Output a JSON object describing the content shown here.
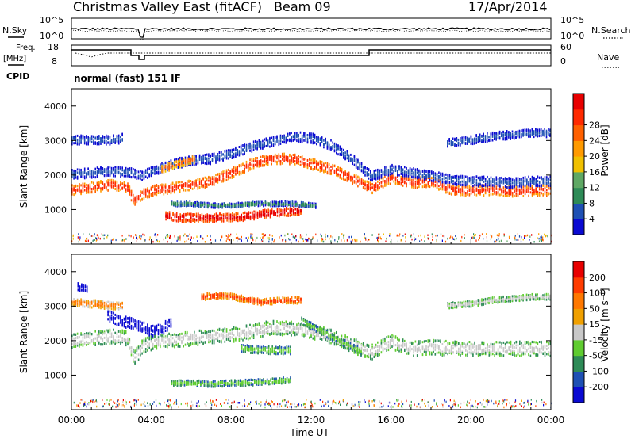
{
  "header": {
    "title": "Christmas Valley East (fitACF)",
    "beam": "Beam 09",
    "date": "17/Apr/2014"
  },
  "noise_panel": {
    "left_label": "N.Sky",
    "right_label": "N.Search",
    "tick_top": "10^5",
    "tick_bottom": "10^0"
  },
  "freq_panel": {
    "left_label_1": "Freq.",
    "left_label_2": "[MHz]",
    "left_tick_top": "18",
    "left_tick_bottom": "8",
    "right_tick_top": "60",
    "right_tick_bottom": "0",
    "right_label": "Nave"
  },
  "cpid": {
    "label": "CPID",
    "text": "normal (fast) 151 IF"
  },
  "chart_data": [
    {
      "type": "heatmap",
      "name": "power",
      "ylabel": "Slant Range [km]",
      "ylim": [
        0,
        4500
      ],
      "yticks": [
        "1000",
        "2000",
        "3000",
        "4000"
      ],
      "colorbar": {
        "label": "Power [dB]",
        "ticks": [
          "4",
          "8",
          "12",
          "16",
          "20",
          "24",
          "28"
        ],
        "colors": [
          "#0a0ad2",
          "#1e50b4",
          "#2e8b57",
          "#5fa864",
          "#f0c000",
          "#ff9a00",
          "#ff6000",
          "#ff2a00",
          "#e80000"
        ]
      },
      "bands": [
        {
          "times": [
            0,
            1,
            2,
            2.8,
            3.1,
            3.6,
            4.2,
            5,
            6,
            7,
            8,
            9,
            10,
            11,
            12,
            13,
            14,
            15,
            16,
            17,
            18,
            19,
            20,
            21,
            22,
            23,
            24
          ],
          "ranges": [
            1600,
            1680,
            1750,
            1650,
            1300,
            1500,
            1600,
            1650,
            1760,
            1850,
            2100,
            2350,
            2500,
            2500,
            2350,
            2200,
            1950,
            1650,
            1950,
            1800,
            1850,
            1600,
            1580,
            1600,
            1550,
            1580,
            1600
          ],
          "width": 300,
          "color_index": 7
        },
        {
          "times": [
            0,
            2,
            3,
            3.5,
            4,
            5,
            6,
            7,
            8,
            9,
            10,
            11,
            12,
            13,
            14,
            15,
            16,
            17,
            18,
            19,
            20,
            21,
            22,
            23,
            24
          ],
          "ranges": [
            2050,
            2150,
            2100,
            2000,
            2150,
            2350,
            2450,
            2500,
            2650,
            2850,
            3000,
            3150,
            3100,
            2900,
            2500,
            2000,
            2200,
            2100,
            2000,
            1900,
            1850,
            1850,
            1800,
            1850,
            1850
          ],
          "width": 280,
          "color_index": 1
        },
        {
          "times": [
            0,
            1,
            2,
            2.6
          ],
          "ranges": [
            3050,
            3050,
            3050,
            3100
          ],
          "width": 260,
          "color_index": 1
        },
        {
          "times": [
            18.8,
            20,
            21,
            22,
            23,
            24
          ],
          "ranges": [
            2950,
            3050,
            3150,
            3200,
            3250,
            3250
          ],
          "width": 240,
          "color_index": 1
        },
        {
          "times": [
            4.7,
            5.5,
            6.5,
            7.5,
            8.5,
            9.5,
            10.5,
            11.5
          ],
          "ranges": [
            850,
            800,
            800,
            800,
            820,
            900,
            950,
            1000
          ],
          "width": 240,
          "color_index": 8
        },
        {
          "times": [
            5,
            6,
            7,
            8,
            9,
            10,
            11,
            12.2
          ],
          "ranges": [
            1200,
            1200,
            1150,
            1150,
            1200,
            1200,
            1200,
            1150
          ],
          "width": 130,
          "color_index": 2
        },
        {
          "times": [
            4.5,
            5,
            5.6,
            6.2
          ],
          "ranges": [
            2200,
            2300,
            2400,
            2500
          ],
          "width": 220,
          "color_index": 6
        }
      ]
    },
    {
      "type": "heatmap",
      "name": "velocity",
      "ylabel": "Slant Range [km]",
      "ylim": [
        0,
        4500
      ],
      "yticks": [
        "1000",
        "2000",
        "3000",
        "4000"
      ],
      "xlabel": "Time UT",
      "xticks": [
        "00:00",
        "04:00",
        "08:00",
        "12:00",
        "16:00",
        "20:00",
        "00:00"
      ],
      "colorbar": {
        "label": "Velocity [m s⁻¹]",
        "ticks": [
          "200",
          "100",
          "50",
          "15",
          "-15",
          "-50",
          "-100",
          "-200"
        ],
        "colors": [
          "#0a0ad2",
          "#1e50b4",
          "#2e8b57",
          "#5fcc30",
          "#c8c8c8",
          "#f0a000",
          "#ff7800",
          "#ff3c00",
          "#e80000"
        ]
      },
      "bands": [
        {
          "times": [
            0,
            1,
            2,
            2.8,
            3.1,
            3.6,
            4.2,
            5,
            6,
            7,
            8,
            9,
            10,
            11,
            12,
            13,
            14,
            15,
            16,
            17,
            18,
            19,
            20,
            21,
            22,
            23,
            24
          ],
          "ranges": [
            2000,
            2100,
            2150,
            2100,
            1500,
            1900,
            2000,
            2050,
            2100,
            2150,
            2200,
            2300,
            2400,
            2400,
            2300,
            2150,
            1900,
            1700,
            2000,
            1800,
            1850,
            1800,
            1800,
            1800,
            1800,
            1800,
            1800
          ],
          "width": 420,
          "color_index": 4
        },
        {
          "times": [
            1.8,
            2.5,
            3.2,
            4,
            4.5,
            5
          ],
          "ranges": [
            2750,
            2600,
            2500,
            2300,
            2400,
            2550
          ],
          "width": 320,
          "color_index": 0
        },
        {
          "times": [
            0.3,
            0.8
          ],
          "ranges": [
            3600,
            3550
          ],
          "width": 220,
          "color_index": 0
        },
        {
          "times": [
            0,
            1,
            2,
            2.6
          ],
          "ranges": [
            3150,
            3100,
            3050,
            3050
          ],
          "width": 220,
          "color_index": 6
        },
        {
          "times": [
            6.5,
            7.5,
            8,
            9.5,
            10.5,
            11.5
          ],
          "ranges": [
            3300,
            3350,
            3300,
            3150,
            3200,
            3200
          ],
          "width": 180,
          "color_index": 7
        },
        {
          "times": [
            5,
            6,
            7,
            8,
            9,
            10,
            11
          ],
          "ranges": [
            800,
            800,
            780,
            800,
            820,
            850,
            900
          ],
          "width": 170,
          "color_index": 3
        },
        {
          "times": [
            11.5,
            12.5,
            13.5,
            14.5
          ],
          "ranges": [
            2600,
            2300,
            2000,
            1700
          ],
          "width": 200,
          "color_index": 3
        },
        {
          "times": [
            18.8,
            20,
            21,
            22,
            23,
            24
          ],
          "ranges": [
            3050,
            3100,
            3200,
            3250,
            3300,
            3300
          ],
          "width": 160,
          "color_index": 4
        },
        {
          "times": [
            8.5,
            10,
            11
          ],
          "ranges": [
            1800,
            1750,
            1750
          ],
          "width": 220,
          "color_index": 3
        }
      ]
    }
  ]
}
